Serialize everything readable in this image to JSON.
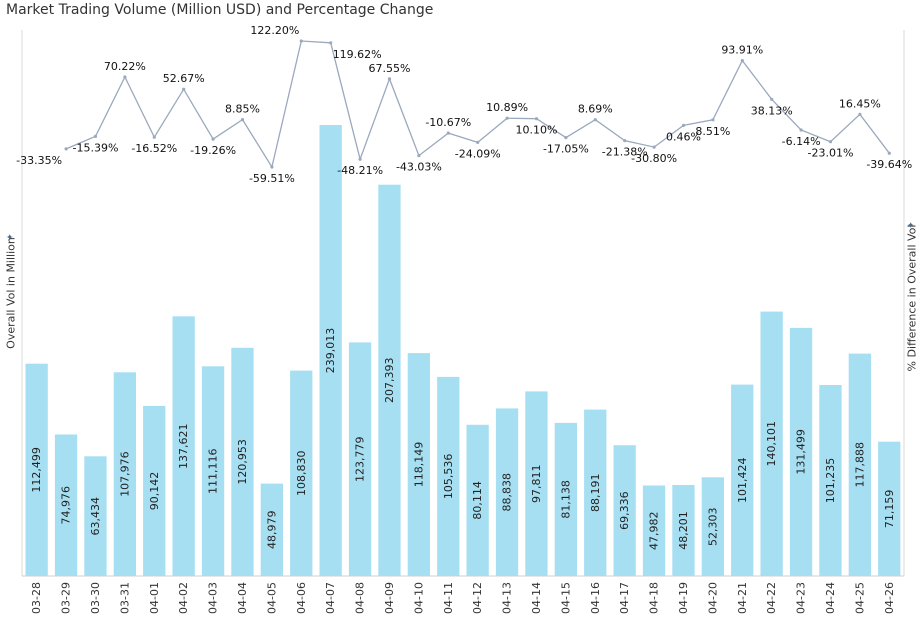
{
  "title": "Market Trading Volume (Million USD) and Percentage Change",
  "chart_data": {
    "type": "bar+line",
    "title": "Market Trading Volume (Million USD) and Percentage Change",
    "categories": [
      "03-28",
      "03-29",
      "03-30",
      "03-31",
      "04-01",
      "04-02",
      "04-03",
      "04-04",
      "04-05",
      "04-06",
      "04-07",
      "04-08",
      "04-09",
      "04-10",
      "04-11",
      "04-12",
      "04-13",
      "04-14",
      "04-15",
      "04-16",
      "04-17",
      "04-18",
      "04-19",
      "04-20",
      "04-21",
      "04-22",
      "04-23",
      "04-24",
      "04-25",
      "04-26"
    ],
    "series": [
      {
        "name": "Overall Vol in Million",
        "type": "bar",
        "color": "#a6dff2",
        "values": [
          112499,
          74976,
          63434,
          107976,
          90142,
          137621,
          111116,
          120953,
          48979,
          108830,
          239013,
          123779,
          207393,
          118149,
          105536,
          80114,
          88838,
          97811,
          81138,
          88191,
          69336,
          47982,
          48201,
          52303,
          101424,
          140101,
          131499,
          101235,
          117888,
          71159
        ],
        "labels": [
          "112,499",
          "74,976",
          "63,434",
          "107,976",
          "90,142",
          "137,621",
          "111,116",
          "120,953",
          "48,979",
          "108,830",
          "239,013",
          "123,779",
          "207,393",
          "118,149",
          "105,536",
          "80,114",
          "88,838",
          "97,811",
          "81,138",
          "88,191",
          "69,336",
          "47,982",
          "48,201",
          "52,303",
          "101,424",
          "140,101",
          "131,499",
          "101,235",
          "117,888",
          "71,159"
        ]
      },
      {
        "name": "% Difference in Overall Vol",
        "type": "line",
        "color": "#9aa9bd",
        "values": [
          null,
          -33.35,
          -15.39,
          70.22,
          -16.52,
          52.67,
          -19.26,
          8.85,
          -59.51,
          122.2,
          119.62,
          -48.21,
          67.55,
          -43.03,
          -10.67,
          -24.09,
          10.89,
          10.1,
          -17.05,
          8.69,
          -21.38,
          -30.8,
          0.46,
          8.51,
          93.91,
          38.13,
          -6.14,
          -23.01,
          16.45,
          -39.64
        ],
        "labels": [
          "",
          "-33.35%",
          "-15.39%",
          "70.22%",
          "-16.52%",
          "52.67%",
          "-19.26%",
          "8.85%",
          "-59.51%",
          "122.20%",
          "119.62%",
          "-48.21%",
          "67.55%",
          "-43.03%",
          "-10.67%",
          "-24.09%",
          "10.89%",
          "10.10%",
          "-17.05%",
          "8.69%",
          "-21.38%",
          "-30.80%",
          "0.46%",
          "8.51%",
          "93.91%",
          "38.13%",
          "-6.14%",
          "-23.01%",
          "16.45%",
          "-39.64%"
        ]
      }
    ],
    "ylabel": "Overall Vol in Million",
    "y2label": "% Difference in Overall Vol",
    "ylim": [
      0,
      300000
    ],
    "y2lim": [
      -80,
      123
    ],
    "grid": false
  }
}
